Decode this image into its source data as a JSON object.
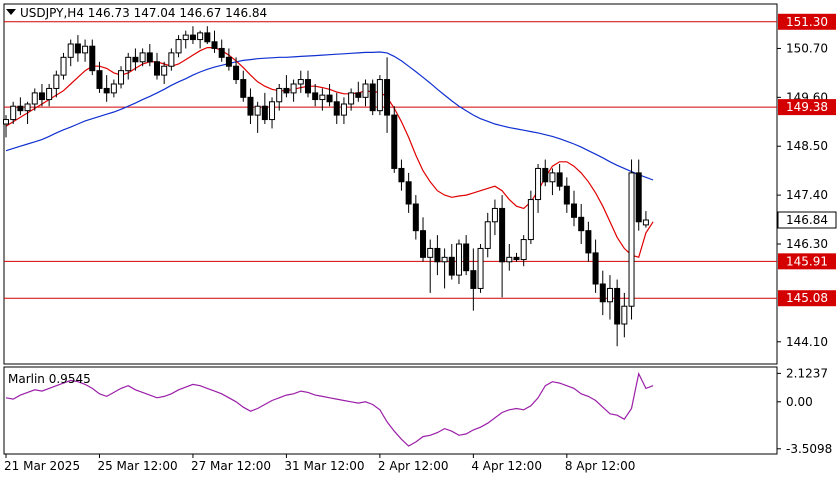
{
  "header": {
    "triangle_icon": "triangle-down-icon",
    "symbol_info": "USDJPY,H4  146.73 147.04 146.67 146.84"
  },
  "indicator": {
    "label": "Marlin 0.9545",
    "color": "#9b1fa8"
  },
  "colors": {
    "background": "#ffffff",
    "panel_bg": "#ececec",
    "level_line": "#d40000",
    "level_box": "#d40000",
    "ma_fast": "#e00000",
    "ma_slow": "#1030d0",
    "candle": "#000000",
    "current_price_box": "#ffffff"
  },
  "chart_data": {
    "type": "candlestick",
    "symbol": "USDJPY",
    "timeframe": "H4",
    "ohlc_current": {
      "open": 146.73,
      "high": 147.04,
      "low": 146.67,
      "close": 146.84
    },
    "price_axis_ticks": [
      "150.70",
      "149.60",
      "148.50",
      "147.40",
      "146.30",
      "144.10"
    ],
    "indicator_axis_ticks": [
      "2.1237",
      "0.00",
      "-3.5098"
    ],
    "time_labels": [
      "21 Mar 2025",
      "25 Mar 12:00",
      "27 Mar 12:00",
      "31 Mar 12:00",
      "2 Apr 12:00",
      "4 Apr 12:00",
      "8 Apr 12:00"
    ],
    "levels": [
      151.3,
      149.38,
      145.91,
      145.08
    ],
    "level_labels": [
      "151.30",
      "149.38",
      "145.91",
      "145.08"
    ],
    "current_price": "146.84",
    "ylim": [
      143.6,
      151.7
    ],
    "indicator_ylim": [
      -3.9,
      2.6
    ],
    "candles": [
      [
        149.0,
        149.2,
        148.7,
        149.1
      ],
      [
        149.1,
        149.5,
        149.0,
        149.4
      ],
      [
        149.4,
        149.6,
        149.2,
        149.3
      ],
      [
        149.3,
        149.5,
        149.0,
        149.45
      ],
      [
        149.45,
        149.8,
        149.3,
        149.7
      ],
      [
        149.7,
        149.9,
        149.4,
        149.55
      ],
      [
        149.55,
        149.9,
        149.4,
        149.8
      ],
      [
        149.8,
        150.2,
        149.6,
        150.1
      ],
      [
        150.1,
        150.6,
        150.0,
        150.5
      ],
      [
        150.5,
        150.9,
        150.3,
        150.8
      ],
      [
        150.8,
        151.0,
        150.4,
        150.6
      ],
      [
        150.6,
        150.9,
        150.4,
        150.75
      ],
      [
        150.75,
        150.9,
        150.1,
        150.2
      ],
      [
        150.2,
        150.4,
        149.7,
        149.8
      ],
      [
        149.8,
        150.1,
        149.5,
        149.7
      ],
      [
        149.7,
        150.0,
        149.6,
        149.9
      ],
      [
        149.9,
        150.3,
        149.8,
        150.2
      ],
      [
        150.2,
        150.6,
        150.0,
        150.5
      ],
      [
        150.5,
        150.7,
        150.2,
        150.4
      ],
      [
        150.4,
        150.7,
        150.3,
        150.6
      ],
      [
        150.6,
        150.8,
        150.3,
        150.4
      ],
      [
        150.4,
        150.6,
        150.0,
        150.1
      ],
      [
        150.1,
        150.4,
        149.9,
        150.3
      ],
      [
        150.3,
        150.7,
        150.2,
        150.6
      ],
      [
        150.6,
        151.0,
        150.5,
        150.9
      ],
      [
        150.9,
        151.1,
        150.7,
        151.0
      ],
      [
        151.0,
        151.2,
        150.8,
        150.9
      ],
      [
        150.9,
        151.1,
        150.7,
        151.05
      ],
      [
        151.05,
        151.2,
        150.8,
        150.85
      ],
      [
        150.85,
        151.1,
        150.6,
        150.7
      ],
      [
        150.7,
        150.9,
        150.4,
        150.5
      ],
      [
        150.5,
        150.7,
        150.2,
        150.3
      ],
      [
        150.3,
        150.5,
        149.9,
        150.0
      ],
      [
        150.0,
        150.2,
        149.5,
        149.6
      ],
      [
        149.6,
        149.8,
        149.0,
        149.2
      ],
      [
        149.2,
        149.5,
        148.8,
        149.4
      ],
      [
        149.4,
        149.7,
        149.0,
        149.1
      ],
      [
        149.1,
        149.6,
        148.9,
        149.5
      ],
      [
        149.5,
        149.9,
        149.3,
        149.8
      ],
      [
        149.8,
        150.1,
        149.6,
        149.7
      ],
      [
        149.7,
        150.0,
        149.5,
        149.9
      ],
      [
        149.9,
        150.2,
        149.7,
        150.0
      ],
      [
        150.0,
        150.2,
        149.6,
        149.7
      ],
      [
        149.7,
        149.9,
        149.4,
        149.55
      ],
      [
        149.55,
        149.8,
        149.3,
        149.65
      ],
      [
        149.65,
        149.9,
        149.4,
        149.5
      ],
      [
        149.5,
        149.7,
        149.0,
        149.2
      ],
      [
        149.2,
        149.6,
        149.0,
        149.45
      ],
      [
        149.45,
        149.8,
        149.3,
        149.7
      ],
      [
        149.7,
        149.95,
        149.5,
        149.6
      ],
      [
        149.6,
        150.0,
        149.4,
        149.9
      ],
      [
        149.9,
        150.0,
        149.2,
        149.3
      ],
      [
        149.3,
        150.1,
        149.2,
        150.0
      ],
      [
        150.0,
        150.5,
        148.8,
        149.2
      ],
      [
        149.2,
        149.4,
        147.9,
        148.0
      ],
      [
        148.0,
        148.2,
        147.5,
        147.7
      ],
      [
        147.7,
        147.9,
        147.0,
        147.2
      ],
      [
        147.2,
        147.4,
        146.4,
        146.6
      ],
      [
        146.6,
        146.9,
        145.9,
        146.0
      ],
      [
        146.0,
        146.4,
        145.2,
        146.2
      ],
      [
        146.2,
        146.5,
        145.6,
        145.9
      ],
      [
        145.9,
        146.2,
        145.3,
        146.0
      ],
      [
        146.0,
        146.3,
        145.5,
        145.6
      ],
      [
        145.6,
        146.4,
        145.4,
        146.3
      ],
      [
        146.3,
        146.5,
        145.6,
        145.7
      ],
      [
        145.7,
        146.2,
        144.8,
        145.3
      ],
      [
        145.3,
        146.3,
        145.2,
        146.2
      ],
      [
        146.2,
        147.0,
        146.0,
        146.8
      ],
      [
        146.8,
        147.3,
        146.5,
        147.1
      ],
      [
        147.1,
        147.4,
        145.1,
        145.9
      ],
      [
        145.9,
        146.3,
        145.7,
        146.0
      ],
      [
        146.0,
        146.1,
        145.9,
        145.95
      ],
      [
        145.95,
        146.5,
        145.8,
        146.4
      ],
      [
        146.4,
        147.5,
        146.3,
        147.3
      ],
      [
        147.3,
        148.1,
        147.0,
        148.0
      ],
      [
        148.0,
        148.2,
        147.6,
        147.7
      ],
      [
        147.7,
        148.0,
        147.4,
        147.9
      ],
      [
        147.9,
        148.1,
        147.5,
        147.6
      ],
      [
        147.6,
        147.8,
        147.0,
        147.2
      ],
      [
        147.2,
        147.5,
        146.7,
        146.9
      ],
      [
        146.9,
        147.2,
        146.3,
        146.6
      ],
      [
        146.6,
        146.8,
        145.9,
        146.1
      ],
      [
        146.1,
        146.4,
        145.2,
        145.4
      ],
      [
        145.4,
        145.7,
        144.7,
        145.0
      ],
      [
        145.0,
        145.6,
        144.6,
        145.3
      ],
      [
        145.3,
        145.5,
        144.0,
        144.5
      ],
      [
        144.5,
        145.2,
        144.2,
        144.9
      ],
      [
        144.9,
        148.2,
        144.6,
        147.9
      ],
      [
        147.9,
        148.2,
        146.6,
        146.8
      ],
      [
        146.73,
        147.04,
        146.67,
        146.84
      ]
    ],
    "ma_fast": [
      148.95,
      149.05,
      149.15,
      149.25,
      149.35,
      149.45,
      149.55,
      149.65,
      149.75,
      149.9,
      150.05,
      150.2,
      150.3,
      150.3,
      150.25,
      150.15,
      150.1,
      150.15,
      150.25,
      150.35,
      150.4,
      150.4,
      150.35,
      150.3,
      150.35,
      150.45,
      150.55,
      150.65,
      150.72,
      150.72,
      150.65,
      150.55,
      150.42,
      150.27,
      150.1,
      149.95,
      149.85,
      149.78,
      149.75,
      149.75,
      149.78,
      149.82,
      149.85,
      149.85,
      149.82,
      149.78,
      149.72,
      149.68,
      149.68,
      149.7,
      149.75,
      149.72,
      149.72,
      149.6,
      149.35,
      149.05,
      148.7,
      148.3,
      147.95,
      147.7,
      147.5,
      147.4,
      147.35,
      147.38,
      147.4,
      147.45,
      147.5,
      147.55,
      147.6,
      147.5,
      147.3,
      147.15,
      147.1,
      147.25,
      147.5,
      147.8,
      148.05,
      148.15,
      148.15,
      148.05,
      147.9,
      147.7,
      147.45,
      147.15,
      146.8,
      146.45,
      146.2,
      146.05,
      146.0,
      146.55,
      146.8
    ],
    "ma_slow": [
      148.4,
      148.45,
      148.5,
      148.55,
      148.6,
      148.65,
      148.72,
      148.8,
      148.87,
      148.93,
      149.0,
      149.07,
      149.12,
      149.17,
      149.22,
      149.27,
      149.33,
      149.4,
      149.47,
      149.55,
      149.62,
      149.7,
      149.78,
      149.87,
      149.95,
      150.02,
      150.1,
      150.17,
      150.23,
      150.28,
      150.32,
      150.36,
      150.4,
      150.43,
      150.45,
      150.47,
      150.48,
      150.49,
      150.5,
      150.5,
      150.51,
      150.52,
      150.53,
      150.54,
      150.55,
      150.56,
      150.57,
      150.58,
      150.59,
      150.6,
      150.61,
      150.61,
      150.62,
      150.6,
      150.52,
      150.42,
      150.3,
      150.18,
      150.05,
      149.92,
      149.78,
      149.65,
      149.52,
      149.4,
      149.3,
      149.2,
      149.12,
      149.06,
      149.0,
      148.96,
      148.92,
      148.89,
      148.86,
      148.83,
      148.8,
      148.76,
      148.72,
      148.67,
      148.61,
      148.55,
      148.48,
      148.4,
      148.32,
      148.24,
      148.15,
      148.07,
      148.0,
      147.93,
      147.86,
      147.8,
      147.74
    ],
    "marlin": [
      0.3,
      0.2,
      0.5,
      0.7,
      0.9,
      0.8,
      1.0,
      1.2,
      1.4,
      1.6,
      1.5,
      1.3,
      1.0,
      0.6,
      0.4,
      0.7,
      1.0,
      1.2,
      0.9,
      0.7,
      0.5,
      0.3,
      0.4,
      0.6,
      0.9,
      1.1,
      1.3,
      1.2,
      1.0,
      0.8,
      0.6,
      0.3,
      0.0,
      -0.4,
      -0.7,
      -0.5,
      -0.2,
      0.1,
      0.3,
      0.5,
      0.6,
      0.8,
      0.7,
      0.5,
      0.4,
      0.3,
      0.2,
      0.1,
      0.0,
      -0.1,
      0.0,
      -0.2,
      -0.6,
      -1.5,
      -2.2,
      -2.8,
      -3.3,
      -3.0,
      -2.6,
      -2.5,
      -2.3,
      -2.0,
      -2.2,
      -2.5,
      -2.4,
      -2.1,
      -1.9,
      -1.6,
      -1.2,
      -0.8,
      -0.6,
      -0.5,
      -0.6,
      -0.3,
      0.3,
      1.2,
      1.5,
      1.4,
      1.2,
      1.0,
      0.6,
      0.4,
      0.1,
      -0.4,
      -0.9,
      -1.0,
      -1.3,
      -0.5,
      2.1,
      1.0,
      1.2
    ]
  }
}
